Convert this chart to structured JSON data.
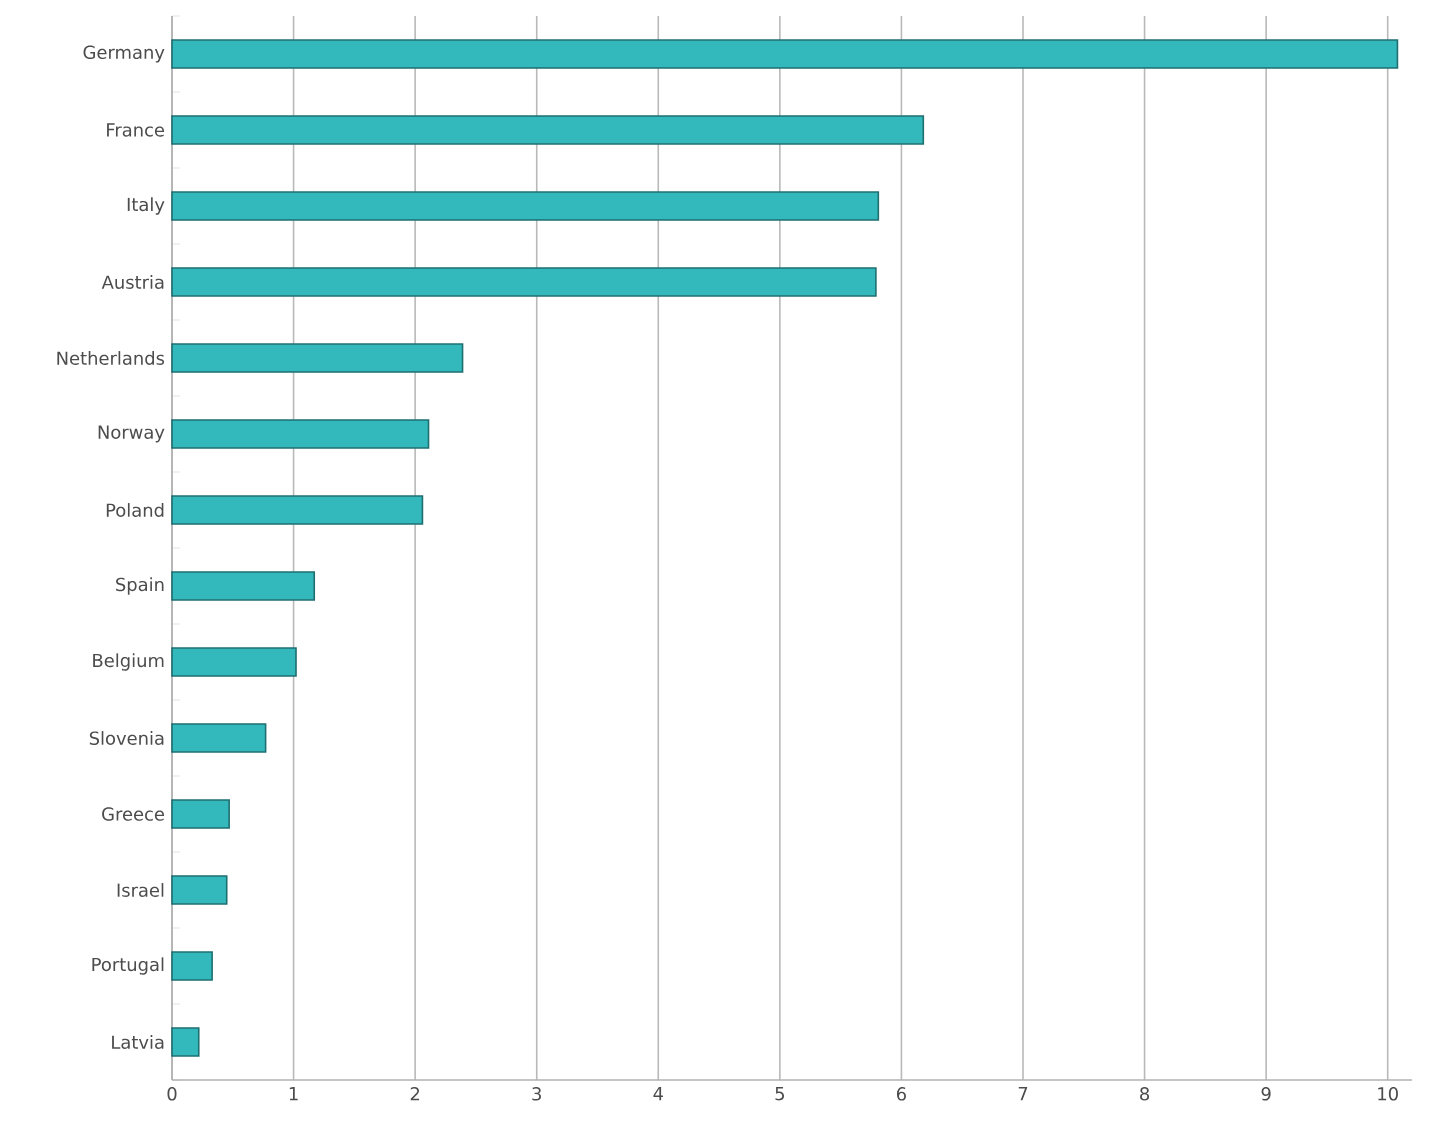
{
  "chart_data": {
    "type": "bar",
    "orientation": "horizontal",
    "categories": [
      "Germany",
      "France",
      "Italy",
      "Austria",
      "Netherlands",
      "Norway",
      "Poland",
      "Spain",
      "Belgium",
      "Slovenia",
      "Greece",
      "Israel",
      "Portugal",
      "Latvia"
    ],
    "values": [
      10.08,
      6.18,
      5.81,
      5.79,
      2.39,
      2.11,
      2.06,
      1.17,
      1.02,
      0.77,
      0.47,
      0.45,
      0.33,
      0.22
    ],
    "color": "#33b9bc",
    "xlim": [
      0,
      10.2
    ],
    "xticks": [
      0,
      1,
      2,
      3,
      4,
      5,
      6,
      7,
      8,
      9,
      10
    ],
    "grid": "x"
  }
}
